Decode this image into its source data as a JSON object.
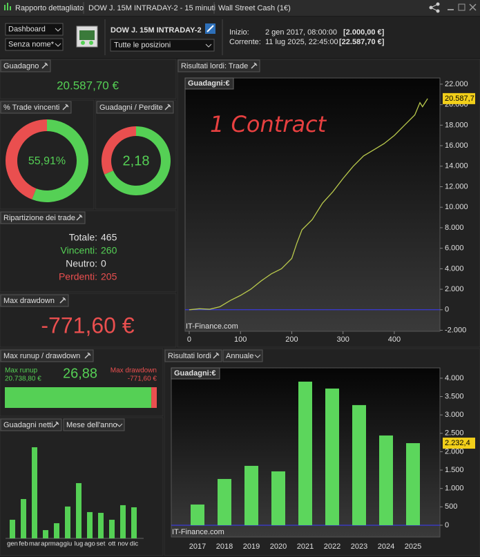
{
  "title_bar": {
    "items": [
      "Rapporto dettagliato",
      "DOW J. 15M INTRADAY-2 - 15 minuti",
      "Wall Street Cash (1€)"
    ]
  },
  "toolbar": {
    "view": "Dashboard",
    "preset": "Senza nome*",
    "system": "DOW J. 15M INTRADAY-2",
    "positions": "Tutte le posizioni",
    "start_label": "Inizio:",
    "start_date": "2 gen 2017, 08:00:00",
    "start_value": "[2.000,00 €]",
    "current_label": "Corrente:",
    "current_date": "11 lug 2025, 22:45:00",
    "current_value": "[22.587,70 €]"
  },
  "gain": {
    "title": "Guadagno",
    "value": "20.587,70 €"
  },
  "breakdown": {
    "title": "Ripartizione dei trade",
    "rows": [
      [
        "Totale:",
        "465"
      ],
      [
        "Vincenti:",
        "260"
      ],
      [
        "Neutro:",
        "0"
      ],
      [
        "Perdenti:",
        "205"
      ]
    ]
  },
  "drawdown": {
    "title": "Max drawdown",
    "value": "-771,60 €"
  },
  "chart_data": [
    {
      "type": "donut",
      "title": "% Trade vincenti",
      "scale": "percent",
      "values": [
        55.91
      ],
      "value_labels": [
        "55,91%"
      ],
      "colors": [
        "#55d055",
        "#ea4f4f"
      ]
    },
    {
      "type": "donut",
      "title": "Guadagni / Perdite",
      "scale": "ratio",
      "values": [
        2.18
      ],
      "value_labels": [
        "2,18"
      ],
      "colors": [
        "#55d055",
        "#ea4f4f"
      ]
    },
    {
      "type": "runup",
      "title": "Max runup / drawdown",
      "names": [
        "Max runup",
        "Max drawdown"
      ],
      "values": [
        20738.8,
        -771.6
      ],
      "value_labels": [
        "20.738,80 €",
        "-771,60 €"
      ],
      "ratio": 26.88,
      "ratio_label": "26,88",
      "colors": [
        "#55d055",
        "#ea4f4f"
      ]
    },
    {
      "type": "bar",
      "title": "Guadagni netti",
      "period": "Mese dell'anno",
      "categories": [
        "gen",
        "feb",
        "mar",
        "apr",
        "mag",
        "giu",
        "lug",
        "ago",
        "set",
        "ott",
        "nov",
        "dic"
      ],
      "values": [
        970,
        2050,
        4750,
        430,
        790,
        1660,
        2880,
        1370,
        1330,
        970,
        1730,
        1620
      ],
      "color": "#55d055"
    },
    {
      "type": "line",
      "title": "Risultati lordi: Trade",
      "subtitle": "Guadagni:€",
      "annotation": "1 Contract",
      "watermark": "IT-Finance.com",
      "x": [
        0,
        20,
        40,
        60,
        80,
        100,
        120,
        140,
        160,
        180,
        200,
        210,
        220,
        240,
        260,
        280,
        300,
        320,
        340,
        360,
        380,
        400,
        420,
        440,
        450,
        455,
        465
      ],
      "values": [
        0,
        100,
        50,
        300,
        900,
        1400,
        2000,
        2800,
        3500,
        4000,
        5000,
        6500,
        7800,
        8800,
        10400,
        11500,
        12800,
        14000,
        15000,
        15600,
        16200,
        17000,
        18000,
        19000,
        20200,
        19800,
        20587.7
      ],
      "value_labels": [
        null,
        null,
        null,
        null,
        null,
        null,
        null,
        null,
        null,
        null,
        null,
        null,
        null,
        null,
        null,
        null,
        null,
        null,
        null,
        null,
        null,
        null,
        null,
        null,
        null,
        null,
        "20.587,7"
      ],
      "xlim": [
        -8,
        489
      ],
      "ylim": [
        -2100,
        22600
      ],
      "xticks": [
        0,
        100,
        200,
        300,
        400
      ],
      "yticks": [
        {
          "value": -2000,
          "label": "-2.000"
        },
        0,
        {
          "value": 2000,
          "label": "2.000"
        },
        {
          "value": 4000,
          "label": "4.000"
        },
        {
          "value": 6000,
          "label": "6.000"
        },
        {
          "value": 8000,
          "label": "8.000"
        },
        {
          "value": 10000,
          "label": "10.000"
        },
        {
          "value": 12000,
          "label": "12.000"
        },
        {
          "value": 14000,
          "label": "14.000"
        },
        {
          "value": 16000,
          "label": "16.000"
        },
        {
          "value": 18000,
          "label": "18.000"
        },
        {
          "value": 20000,
          "label": "20.000"
        },
        {
          "value": 22000,
          "label": "22.000"
        }
      ],
      "color": "#b9c94c",
      "zero_line_color": "#3b3bff",
      "annotation_color": "#e84040"
    },
    {
      "type": "bar",
      "title": "Risultati lordi",
      "period": "Annuale",
      "subtitle": "Guadagni:€",
      "watermark": "IT-Finance.com",
      "categories": [
        "2017",
        "2018",
        "2019",
        "2020",
        "2021",
        "2022",
        "2023",
        "2024",
        "2025"
      ],
      "values": [
        563,
        1258,
        1615,
        1465,
        3906,
        3718,
        3268,
        2441,
        2232.4
      ],
      "value_labels": [
        null,
        null,
        null,
        null,
        null,
        null,
        null,
        null,
        "2.232,4"
      ],
      "ylim": [
        -320,
        4280
      ],
      "yticks": [
        0,
        500,
        {
          "value": 1000,
          "label": "1.000"
        },
        {
          "value": 1500,
          "label": "1.500"
        },
        {
          "value": 2000,
          "label": "2.000"
        },
        {
          "value": 2500,
          "label": "2.500"
        },
        {
          "value": 3000,
          "label": "3.000"
        },
        {
          "value": 3500,
          "label": "3.500"
        },
        {
          "value": 4000,
          "label": "4.000"
        }
      ],
      "color": "#5cd65c",
      "zero_line_color": "#3b3bff"
    }
  ]
}
